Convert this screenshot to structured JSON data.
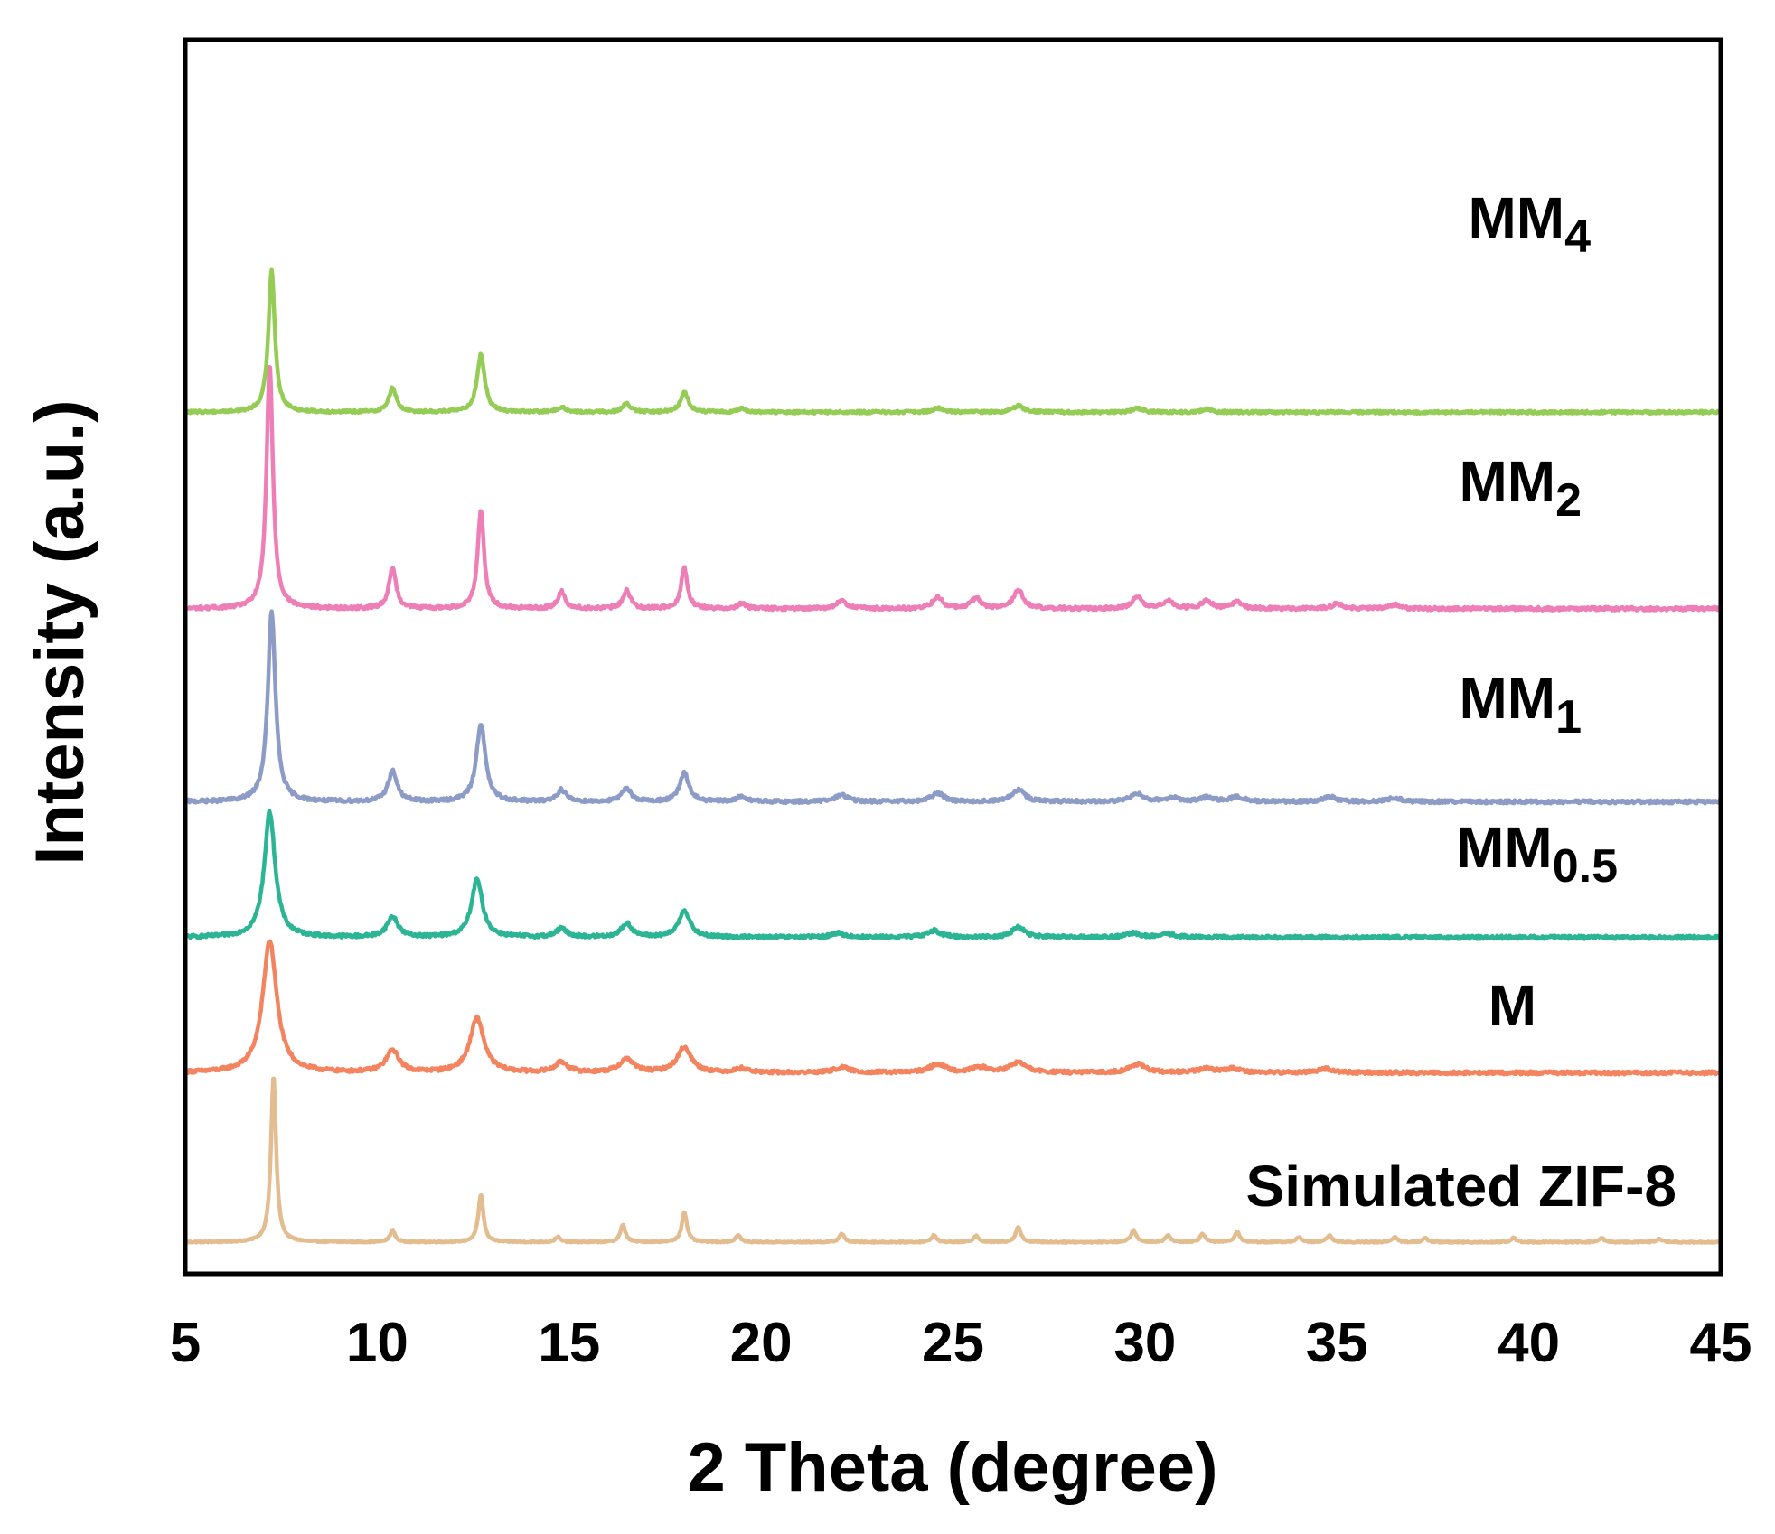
{
  "chart_data": {
    "type": "line",
    "title": "",
    "xlabel": "2 Theta (degree)",
    "ylabel": "Intensity (a.u.)",
    "xlim": [
      5,
      45
    ],
    "xticks": [
      5,
      10,
      15,
      20,
      25,
      30,
      35,
      40,
      45
    ],
    "grid": false,
    "legend": "inline labels at right",
    "series": [
      {
        "name": "Simulated ZIF-8",
        "label_main": "Simulated ZIF-8",
        "label_sub": "",
        "color": "#e3bd8f",
        "offset": 0,
        "noise": 0.02,
        "baseline_slope": 0.0,
        "peaks": [
          [
            7.3,
            4.9,
            0.08
          ],
          [
            10.4,
            0.35,
            0.08
          ],
          [
            12.7,
            1.4,
            0.08
          ],
          [
            14.7,
            0.15,
            0.08
          ],
          [
            16.4,
            0.5,
            0.08
          ],
          [
            18.0,
            0.9,
            0.08
          ],
          [
            19.4,
            0.2,
            0.08
          ],
          [
            22.1,
            0.25,
            0.08
          ],
          [
            24.5,
            0.2,
            0.08
          ],
          [
            25.6,
            0.2,
            0.08
          ],
          [
            26.7,
            0.45,
            0.08
          ],
          [
            29.7,
            0.35,
            0.08
          ],
          [
            30.6,
            0.2,
            0.08
          ],
          [
            31.5,
            0.25,
            0.08
          ],
          [
            32.4,
            0.3,
            0.08
          ],
          [
            34.0,
            0.15,
            0.08
          ],
          [
            34.8,
            0.2,
            0.08
          ],
          [
            36.5,
            0.15,
            0.08
          ],
          [
            37.3,
            0.12,
            0.08
          ],
          [
            39.6,
            0.12,
            0.08
          ],
          [
            41.9,
            0.12,
            0.08
          ],
          [
            43.4,
            0.1,
            0.08
          ]
        ]
      },
      {
        "name": "M",
        "label_main": "M",
        "label_sub": "",
        "color": "#f4845f",
        "offset": 5.0,
        "noise": 0.05,
        "baseline_slope": 0.0,
        "peaks": [
          [
            7.2,
            3.9,
            0.22
          ],
          [
            10.4,
            0.65,
            0.2
          ],
          [
            12.6,
            1.6,
            0.22
          ],
          [
            14.8,
            0.3,
            0.2
          ],
          [
            16.5,
            0.4,
            0.22
          ],
          [
            18.0,
            0.75,
            0.22
          ],
          [
            19.5,
            0.12,
            0.2
          ],
          [
            22.1,
            0.15,
            0.25
          ],
          [
            24.6,
            0.25,
            0.25
          ],
          [
            25.7,
            0.15,
            0.25
          ],
          [
            26.7,
            0.3,
            0.25
          ],
          [
            29.8,
            0.25,
            0.25
          ],
          [
            31.6,
            0.12,
            0.25
          ],
          [
            32.3,
            0.12,
            0.25
          ],
          [
            34.7,
            0.12,
            0.25
          ]
        ]
      },
      {
        "name": "MM0.5",
        "label_main": "MM",
        "label_sub": "0.5",
        "color": "#2bb595",
        "offset": 9.0,
        "noise": 0.05,
        "baseline_slope": 0.0,
        "peaks": [
          [
            7.2,
            3.7,
            0.17
          ],
          [
            10.4,
            0.6,
            0.17
          ],
          [
            12.6,
            1.7,
            0.17
          ],
          [
            14.8,
            0.25,
            0.17
          ],
          [
            16.5,
            0.4,
            0.17
          ],
          [
            18.0,
            0.8,
            0.17
          ],
          [
            22.0,
            0.12,
            0.2
          ],
          [
            24.5,
            0.2,
            0.2
          ],
          [
            26.7,
            0.3,
            0.2
          ],
          [
            29.7,
            0.12,
            0.2
          ],
          [
            30.6,
            0.1,
            0.2
          ]
        ]
      },
      {
        "name": "MM1",
        "label_main": "MM",
        "label_sub": "1",
        "color": "#8c9cc7",
        "offset": 13.0,
        "noise": 0.05,
        "baseline_slope": 0.0,
        "peaks": [
          [
            7.25,
            5.6,
            0.12
          ],
          [
            10.4,
            0.9,
            0.14
          ],
          [
            12.7,
            2.3,
            0.14
          ],
          [
            14.8,
            0.35,
            0.14
          ],
          [
            16.5,
            0.4,
            0.14
          ],
          [
            18.0,
            0.85,
            0.14
          ],
          [
            19.5,
            0.15,
            0.16
          ],
          [
            22.1,
            0.2,
            0.2
          ],
          [
            24.6,
            0.25,
            0.2
          ],
          [
            26.7,
            0.35,
            0.2
          ],
          [
            29.8,
            0.25,
            0.2
          ],
          [
            30.7,
            0.12,
            0.2
          ],
          [
            31.6,
            0.12,
            0.2
          ],
          [
            32.4,
            0.15,
            0.2
          ],
          [
            34.8,
            0.15,
            0.2
          ],
          [
            36.5,
            0.12,
            0.2
          ]
        ]
      },
      {
        "name": "MM2",
        "label_main": "MM",
        "label_sub": "2",
        "color": "#ee7fb6",
        "offset": 18.7,
        "noise": 0.05,
        "baseline_slope": 0.0,
        "peaks": [
          [
            7.2,
            7.2,
            0.1
          ],
          [
            10.4,
            1.2,
            0.11
          ],
          [
            12.7,
            2.9,
            0.1
          ],
          [
            14.8,
            0.5,
            0.11
          ],
          [
            16.5,
            0.55,
            0.11
          ],
          [
            18.0,
            1.2,
            0.1
          ],
          [
            19.5,
            0.15,
            0.12
          ],
          [
            22.1,
            0.25,
            0.15
          ],
          [
            24.6,
            0.35,
            0.15
          ],
          [
            25.6,
            0.3,
            0.15
          ],
          [
            26.7,
            0.55,
            0.15
          ],
          [
            29.8,
            0.35,
            0.15
          ],
          [
            30.6,
            0.25,
            0.15
          ],
          [
            31.6,
            0.25,
            0.15
          ],
          [
            32.4,
            0.2,
            0.15
          ],
          [
            35.0,
            0.15,
            0.15
          ],
          [
            36.5,
            0.12,
            0.15
          ]
        ]
      },
      {
        "name": "MM4",
        "label_main": "MM",
        "label_sub": "4",
        "color": "#94cc55",
        "offset": 24.5,
        "noise": 0.04,
        "baseline_slope": 0.0,
        "peaks": [
          [
            7.25,
            4.2,
            0.1
          ],
          [
            10.4,
            0.7,
            0.12
          ],
          [
            12.7,
            1.7,
            0.12
          ],
          [
            14.8,
            0.15,
            0.12
          ],
          [
            16.5,
            0.25,
            0.12
          ],
          [
            18.0,
            0.6,
            0.12
          ],
          [
            19.5,
            0.1,
            0.12
          ],
          [
            24.6,
            0.12,
            0.15
          ],
          [
            26.7,
            0.2,
            0.15
          ],
          [
            29.8,
            0.12,
            0.15
          ],
          [
            31.6,
            0.08,
            0.15
          ]
        ]
      }
    ]
  }
}
